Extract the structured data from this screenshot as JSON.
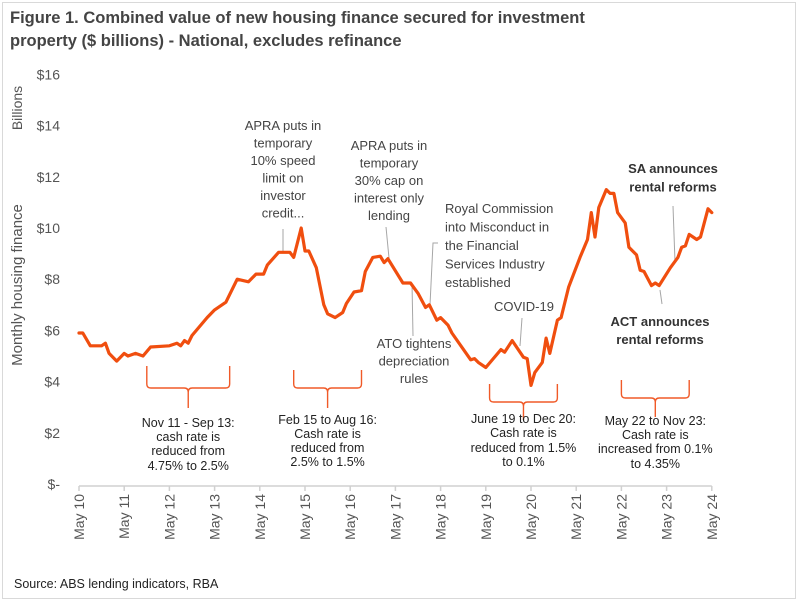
{
  "chart_data": {
    "type": "line",
    "title": "Figure 1. Combined value of new housing finance secured for investment property ($ billions) - National, excludes refinance",
    "ylabel": "Monthly housing finance",
    "yunit_label": "Billions",
    "xlabel": "",
    "ylim": [
      0,
      16
    ],
    "yticks": [
      0,
      2,
      4,
      6,
      8,
      10,
      12,
      14,
      16
    ],
    "ytick_labels": [
      "$-",
      "$2",
      "$4",
      "$6",
      "$8",
      "$10",
      "$12",
      "$14",
      "$16"
    ],
    "xtick_labels": [
      "May 10",
      "May 11",
      "May 12",
      "May 13",
      "May 14",
      "May 15",
      "May 16",
      "May 17",
      "May 18",
      "May 19",
      "May 20",
      "May 21",
      "May 22",
      "May 23",
      "May 24"
    ],
    "grid": false,
    "line_color": "#f04e0f",
    "bracket_color": "#f05a28",
    "series": [
      {
        "x": [
          "2010-05",
          "2010-06",
          "2010-08",
          "2010-11",
          "2010-12",
          "2011-01",
          "2011-03",
          "2011-05",
          "2011-06",
          "2011-08",
          "2011-10",
          "2011-12",
          "2012-05",
          "2012-07",
          "2012-08",
          "2012-09",
          "2012-10",
          "2012-11",
          "2013-03",
          "2013-05",
          "2013-08",
          "2013-11",
          "2014-02",
          "2014-04",
          "2014-06",
          "2014-07",
          "2014-10",
          "2015-01",
          "2015-02",
          "2015-04",
          "2015-05",
          "2015-06",
          "2015-08",
          "2015-10",
          "2015-11",
          "2016-01",
          "2016-03",
          "2016-04",
          "2016-06",
          "2016-08",
          "2016-09",
          "2016-11",
          "2017-01",
          "2017-02",
          "2017-03",
          "2017-07",
          "2017-09",
          "2017-11",
          "2018-01",
          "2018-02",
          "2018-04",
          "2018-05",
          "2018-07",
          "2018-08",
          "2019-01",
          "2019-02",
          "2019-03",
          "2019-05",
          "2019-09",
          "2019-10",
          "2019-12",
          "2020-03",
          "2020-04",
          "2020-05",
          "2020-06",
          "2020-08",
          "2020-09",
          "2020-10",
          "2020-12",
          "2021-01",
          "2021-03",
          "2021-06",
          "2021-08",
          "2021-09",
          "2021-10",
          "2021-11",
          "2022-01",
          "2022-02",
          "2022-03",
          "2022-04",
          "2022-06",
          "2022-07",
          "2022-09",
          "2022-10",
          "2022-11",
          "2023-01",
          "2023-02",
          "2023-03",
          "2023-06",
          "2023-08",
          "2023-09",
          "2023-10",
          "2023-11",
          "2024-01",
          "2024-02",
          "2024-04",
          "2024-05"
        ],
        "values": [
          5.9,
          5.9,
          5.4,
          5.4,
          5.5,
          5.1,
          4.8,
          5.1,
          5.0,
          5.1,
          5.0,
          5.35,
          5.4,
          5.5,
          5.4,
          5.6,
          5.5,
          5.8,
          6.5,
          6.8,
          7.1,
          8.0,
          7.9,
          8.2,
          8.2,
          8.55,
          9.05,
          9.05,
          8.85,
          10.0,
          9.1,
          9.1,
          8.45,
          7.0,
          6.65,
          6.5,
          6.7,
          7.05,
          7.5,
          7.55,
          8.3,
          8.85,
          8.9,
          8.65,
          8.8,
          7.85,
          7.85,
          7.45,
          6.9,
          7.0,
          6.4,
          6.5,
          6.2,
          5.9,
          4.85,
          4.9,
          4.75,
          4.55,
          5.25,
          5.15,
          5.6,
          4.95,
          4.9,
          3.85,
          4.35,
          4.75,
          5.7,
          5.1,
          6.4,
          6.5,
          7.7,
          8.85,
          9.55,
          10.6,
          9.65,
          10.8,
          11.5,
          11.35,
          11.35,
          10.6,
          10.2,
          9.25,
          8.95,
          8.35,
          8.3,
          7.75,
          7.85,
          7.75,
          8.45,
          8.85,
          9.25,
          9.3,
          9.75,
          9.55,
          9.65,
          10.75,
          10.6
        ]
      }
    ],
    "annotations": [
      {
        "text": [
          "APRA puts in",
          "temporary",
          "10% speed",
          "limit on",
          "investor",
          "credit..."
        ],
        "bold": false
      },
      {
        "text": [
          "APRA puts in",
          "temporary",
          "30% cap on",
          "interest only",
          "lending"
        ],
        "bold": false
      },
      {
        "text": [
          "Royal Commission",
          "into Misconduct in",
          "the Financial",
          "Services Industry",
          "established"
        ],
        "bold": false
      },
      {
        "text": [
          "ATO tightens",
          "depreciation",
          "rules"
        ],
        "bold": false
      },
      {
        "text": [
          "COVID-19"
        ],
        "bold": false
      },
      {
        "text": [
          "SA announces",
          "rental reforms"
        ],
        "bold": true
      },
      {
        "text": [
          "ACT announces",
          "rental reforms"
        ],
        "bold": true
      }
    ],
    "brackets": [
      {
        "from": "2011-11",
        "to": "2013-09",
        "text": [
          "Nov 11 - Sep 13:",
          "cash rate is",
          "reduced from",
          "4.75% to 2.5%"
        ]
      },
      {
        "from": "2015-02",
        "to": "2016-08",
        "text": [
          "Feb 15 to Aug 16:",
          "Cash rate is",
          "reduced from",
          "2.5% to 1.5%"
        ]
      },
      {
        "from": "2019-06",
        "to": "2020-12",
        "text": [
          "June 19 to Dec 20:",
          "Cash rate is",
          "reduced from 1.5%",
          "to 0.1%"
        ]
      },
      {
        "from": "2022-05",
        "to": "2023-11",
        "text": [
          "May 22 to Nov 23:",
          "Cash rate is",
          "increased from 0.1%",
          "to 4.35%"
        ]
      }
    ]
  },
  "source": "Source: ABS lending indicators, RBA"
}
